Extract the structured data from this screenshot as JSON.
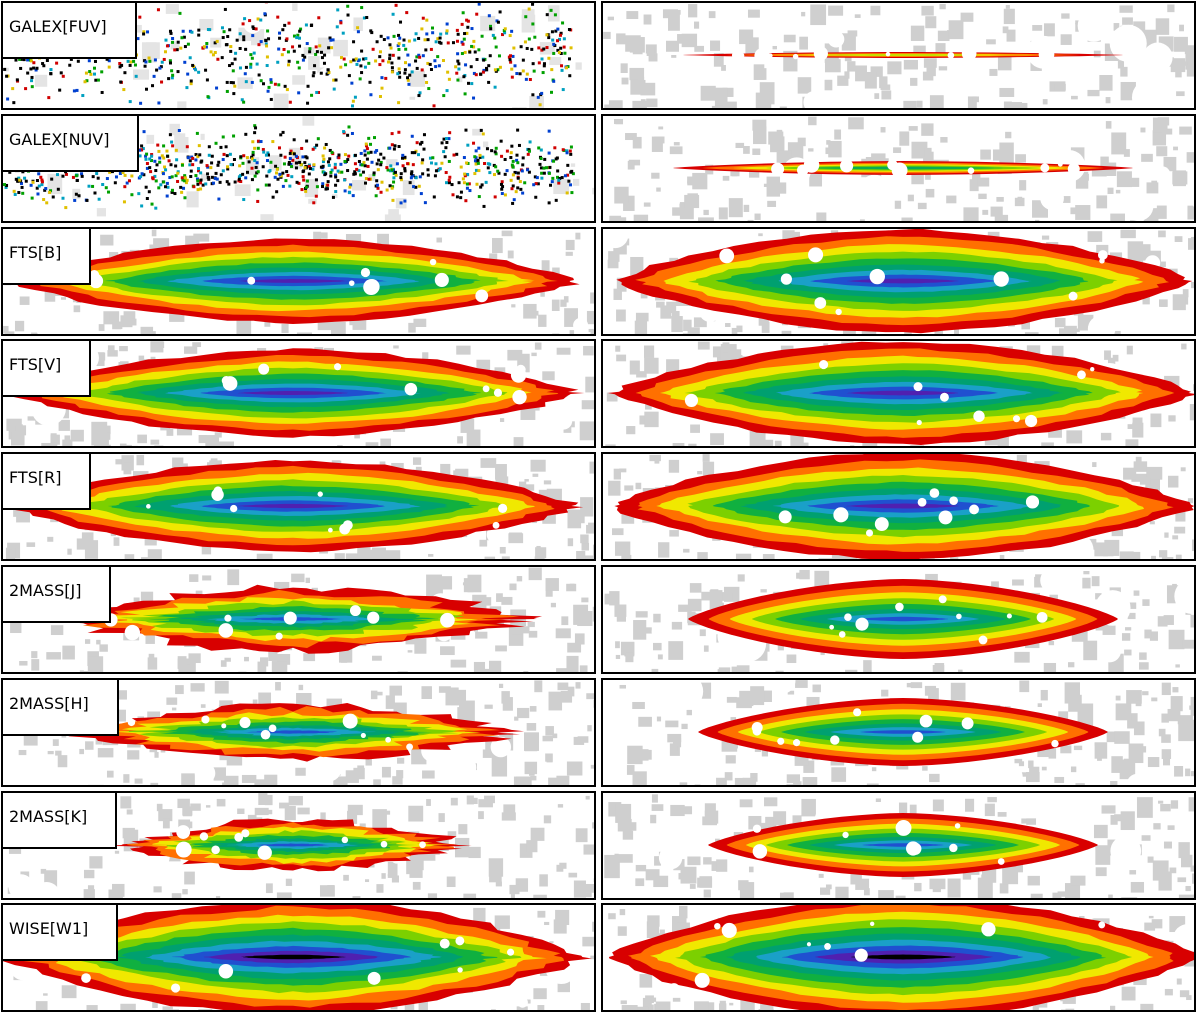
{
  "panels": [
    {
      "label": "GALEX[FUV]"
    },
    {
      "label": "GALEX[NUV]"
    },
    {
      "label": "FTS[B]"
    },
    {
      "label": "FTS[V]"
    },
    {
      "label": "FTS[R]"
    },
    {
      "label": "2MASS[J]"
    },
    {
      "label": "2MASS[H]"
    },
    {
      "label": "2MASS[K]"
    },
    {
      "label": "WISE[W1]"
    }
  ]
}
